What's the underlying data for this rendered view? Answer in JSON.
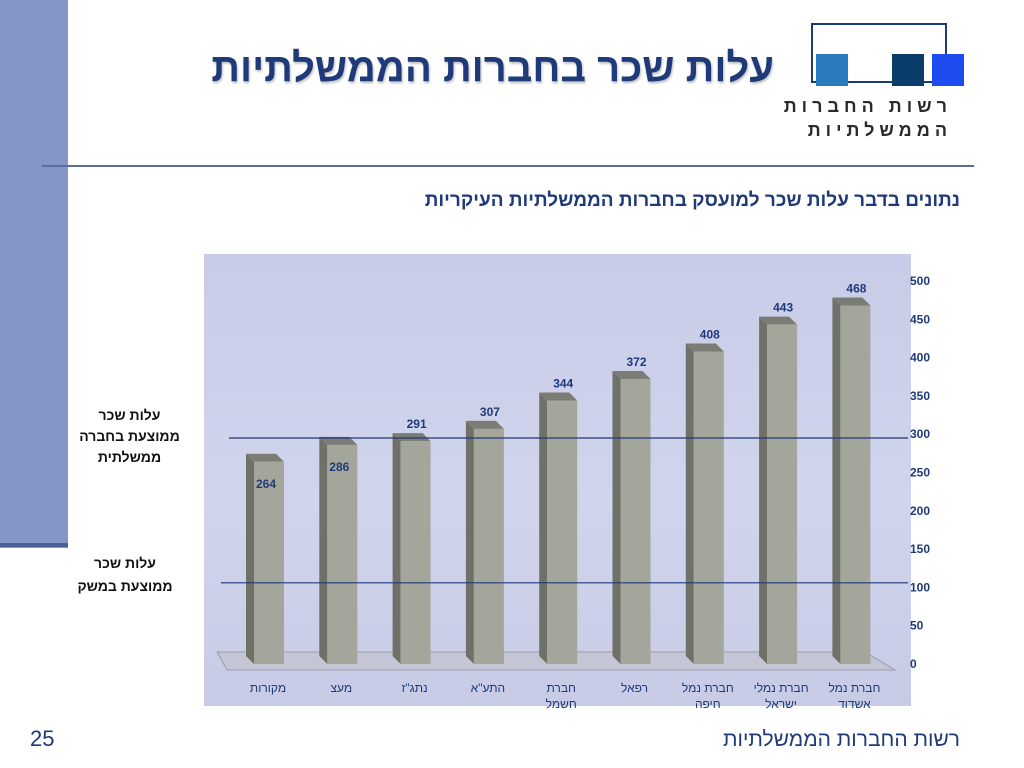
{
  "slide": {
    "title": "עלות שכר בחברות הממשלתיות",
    "subtitle": "נתונים בדבר עלות שכר למועסק בחברות הממשלתיות העיקריות",
    "footer": "רשות החברות הממשלתיות",
    "slide_number": "25"
  },
  "logo": {
    "line1": "רשות החברות",
    "line2": "הממשלתיות",
    "colors": [
      "#2a7abf",
      "#0b3d6b",
      "#1e4cf0"
    ]
  },
  "reference_labels": {
    "company_avg": [
      "עלות שכר",
      "ממוצעת בחברה",
      "ממשלתית"
    ],
    "economy_avg": [
      "עלות שכר",
      "ממוצעת במשק"
    ]
  },
  "chart_data": {
    "type": "bar",
    "categories": [
      [
        "מקורות"
      ],
      [
        "מעצ"
      ],
      [
        "נתג\"ז"
      ],
      [
        "התע\"א"
      ],
      [
        "חברת",
        "חשמל"
      ],
      [
        "רפאל"
      ],
      [
        "חברת נמל",
        "חיפה"
      ],
      [
        "חברת נמלי",
        "ישראל"
      ],
      [
        "חברת נמל",
        "אשדוד"
      ]
    ],
    "values": [
      264,
      286,
      291,
      307,
      344,
      372,
      408,
      443,
      468
    ],
    "ylim": [
      0,
      500
    ],
    "yticks": [
      0,
      50,
      100,
      150,
      200,
      250,
      300,
      350,
      400,
      450,
      500
    ],
    "y_axis_side": "right",
    "reference_lines": [
      {
        "value": 295
      },
      {
        "value": 106
      }
    ],
    "grid": false,
    "legend": "none",
    "colors": {
      "bar": "#a4a69c",
      "value_label": "#1f3a78",
      "reference_line": "#1f3a78"
    }
  }
}
